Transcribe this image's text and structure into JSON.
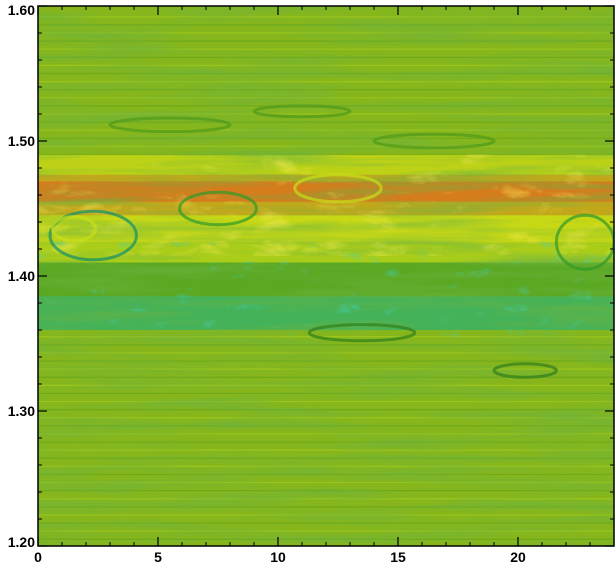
{
  "chart_data": {
    "type": "heatmap",
    "title": "",
    "xlabel": "",
    "ylabel": "",
    "xlim": [
      0,
      24
    ],
    "ylim": [
      1.2,
      1.6
    ],
    "x_ticks": [
      0,
      5,
      10,
      15,
      20
    ],
    "x_tick_labels": [
      "0",
      "5",
      "10",
      "15",
      "20"
    ],
    "y_ticks": [
      1.2,
      1.3,
      1.4,
      1.5,
      1.6
    ],
    "y_tick_labels": [
      "1.20",
      "1.30",
      "1.40",
      "1.50",
      "1.60"
    ],
    "grid": false,
    "legend": "none",
    "colormap": [
      "#0fae8c",
      "#2f9a2a",
      "#7fbf1c",
      "#c8e018",
      "#f4ee10",
      "#f59b1c",
      "#e8521f"
    ],
    "base_color": "#86b61c",
    "field_regions": [
      {
        "y_range": [
          1.2,
          1.36
        ],
        "pattern": "smooth horizontal stripes",
        "dominant": "#86b61c"
      },
      {
        "y_range": [
          1.36,
          1.42
        ],
        "pattern": "turbulent",
        "dominant": "#0fae8c"
      },
      {
        "y_range": [
          1.42,
          1.49
        ],
        "pattern": "turbulent vortices",
        "dominant": "#f59b1c"
      },
      {
        "y_range": [
          1.49,
          1.6
        ],
        "pattern": "smooth horizontal stripes",
        "dominant": "#86b61c"
      }
    ]
  }
}
